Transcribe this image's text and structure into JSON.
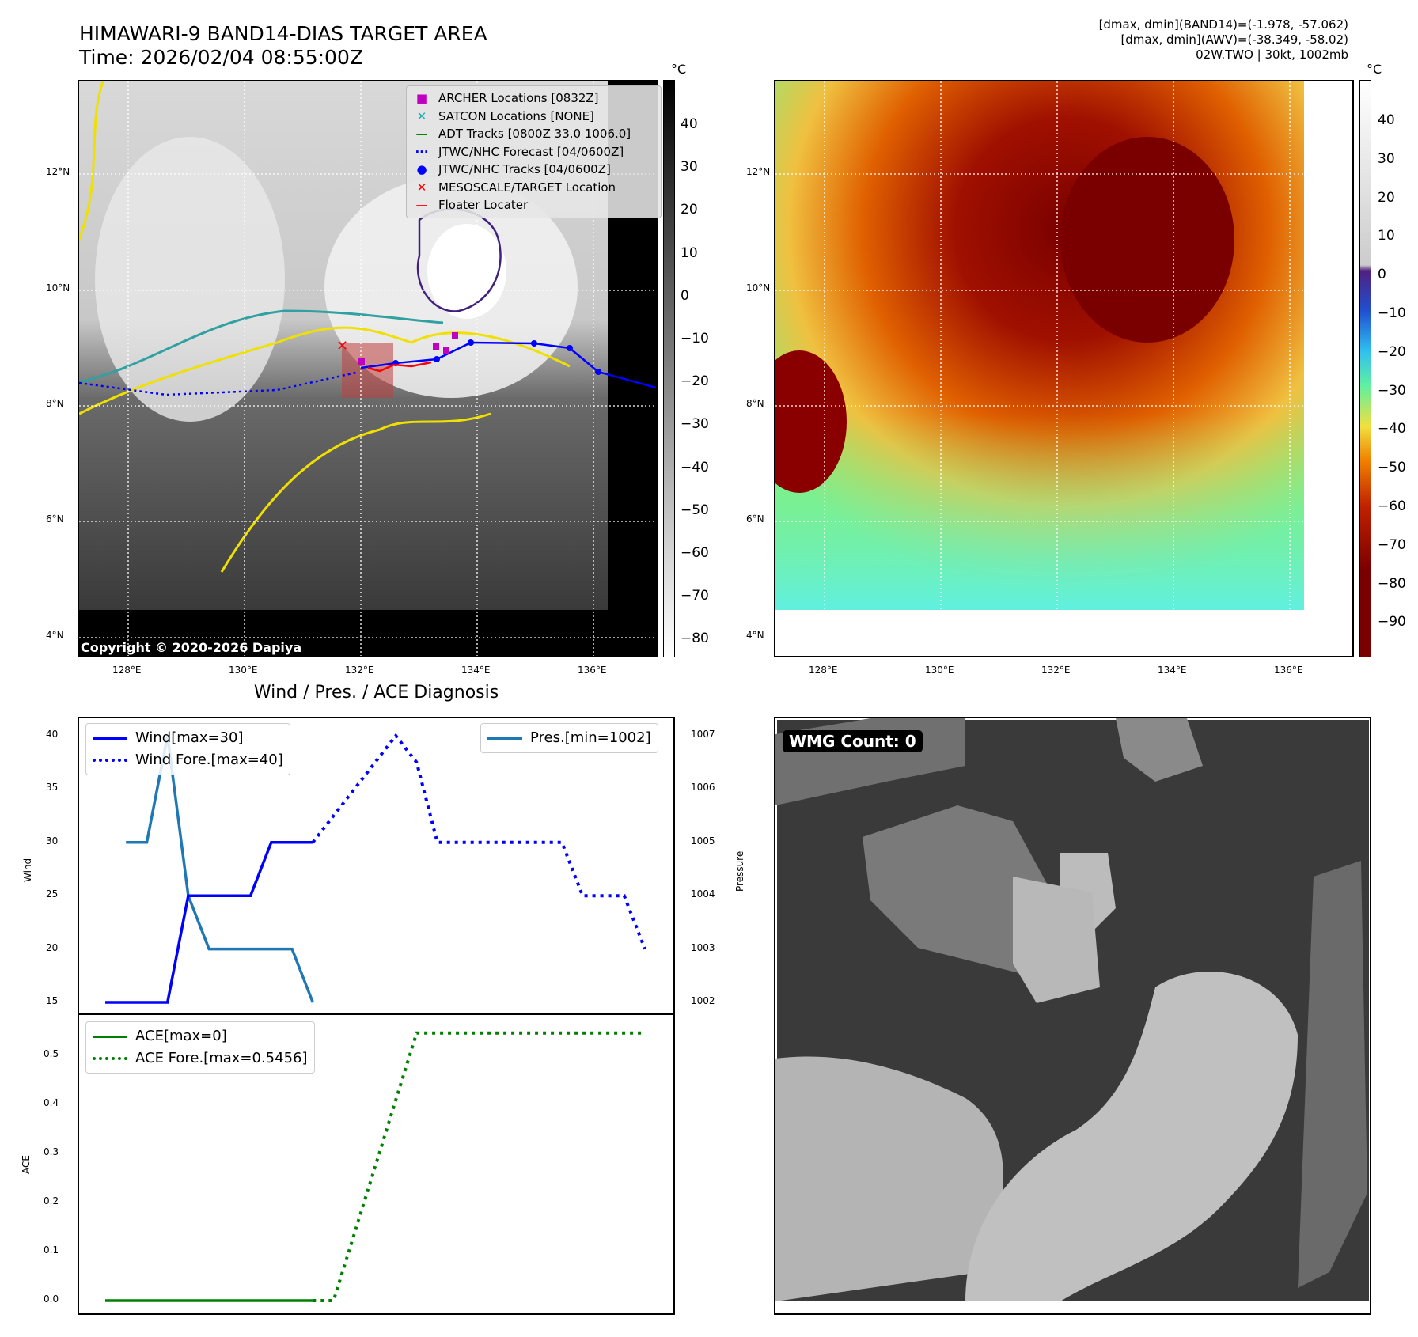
{
  "header": {
    "title_line1": "HIMAWARI-9 BAND14-DIAS TARGET AREA",
    "title_line2": "Time: 2026/02/04 08:55:00Z",
    "info_line1": "[dmax, dmin](BAND14)=(-1.978, -57.062)",
    "info_line2": "[dmax, dmin](AWV)=(-38.349, -58.02)",
    "info_line3": "02W.TWO | 30kt, 1002mb"
  },
  "map": {
    "lat_labels": [
      "12°N",
      "10°N",
      "8°N",
      "6°N",
      "4°N"
    ],
    "lon_labels": [
      "128°E",
      "130°E",
      "132°E",
      "134°E",
      "136°E"
    ],
    "copyright": "Copyright © 2020-2026 Dapiya",
    "legend": [
      {
        "marker": "■",
        "color": "#c000c0",
        "label": "ARCHER Locations [0832Z]"
      },
      {
        "marker": "✕",
        "color": "#20b0b0",
        "label": "SATCON Locations [NONE]"
      },
      {
        "marker": "—",
        "color": "#008000",
        "label": "ADT Tracks [0800Z 33.0 1006.0]"
      },
      {
        "marker": "···",
        "color": "#0000ff",
        "label": "JTWC/NHC Forecast [04/0600Z]"
      },
      {
        "marker": "●",
        "color": "#0000ff",
        "label": "JTWC/NHC Tracks [04/0600Z]"
      },
      {
        "marker": "✕",
        "color": "#ff0000",
        "label": "MESOSCALE/TARGET Location"
      },
      {
        "marker": "—",
        "color": "#ff0000",
        "label": "Floater Locater"
      }
    ]
  },
  "colorbar_left": {
    "unit": "°C",
    "ticks": [
      "40",
      "30",
      "20",
      "10",
      "0",
      "−10",
      "−20",
      "−30",
      "−40",
      "−50",
      "−60",
      "−70",
      "−80"
    ]
  },
  "colorbar_right": {
    "unit": "°C",
    "ticks": [
      "40",
      "30",
      "20",
      "10",
      "0",
      "−10",
      "−20",
      "−30",
      "−40",
      "−50",
      "−60",
      "−70",
      "−80",
      "−90"
    ]
  },
  "diagnosis": {
    "title": "Wind / Pres. / ACE Diagnosis",
    "wind_ylabel": "Wind",
    "pres_ylabel": "Pressure",
    "ace_ylabel": "ACE",
    "wind_ticks": [
      "40",
      "35",
      "30",
      "25",
      "20",
      "15"
    ],
    "pres_ticks": [
      "1007",
      "1006",
      "1005",
      "1004",
      "1003",
      "1002"
    ],
    "ace_ticks": [
      "0.5",
      "0.4",
      "0.3",
      "0.2",
      "0.1",
      "0.0"
    ],
    "legend_wind": "Wind[max=30]",
    "legend_wind_fore": "Wind Fore.[max=40]",
    "legend_pres": "Pres.[min=1002]",
    "legend_ace": "ACE[max=0]",
    "legend_ace_fore": "ACE Fore.[max=0.5456]"
  },
  "wmg": {
    "label": "WMG Count: 0"
  },
  "chart_data": [
    {
      "type": "line",
      "title": "Wind / Pres. / ACE Diagnosis",
      "ylabel": "Wind",
      "ylim": [
        14,
        40.5
      ],
      "xlim": [
        0,
        26
      ],
      "series": [
        {
          "name": "Wind[max=30]",
          "x": [
            0,
            1,
            2,
            3,
            4,
            5,
            6,
            7,
            8,
            9,
            10
          ],
          "values": [
            15,
            15,
            15,
            15,
            25,
            25,
            25,
            25,
            30,
            30,
            30
          ]
        },
        {
          "name": "Wind Fore.[max=40]",
          "x": [
            10,
            11,
            12,
            13,
            14,
            15,
            16,
            17,
            18,
            19,
            20,
            21,
            22,
            23,
            24,
            25,
            26
          ],
          "values": [
            30,
            32.5,
            35,
            37.5,
            40,
            37.5,
            30,
            30,
            30,
            30,
            30,
            30,
            30,
            25,
            25,
            25,
            20
          ]
        }
      ]
    },
    {
      "type": "line",
      "ylabel": "Pressure",
      "ylim": [
        1001.9,
        1007.1
      ],
      "xlim": [
        0,
        26
      ],
      "series": [
        {
          "name": "Pres.[min=1002]",
          "x": [
            1,
            2,
            3,
            4,
            5,
            6,
            7,
            8,
            9,
            10
          ],
          "values": [
            1005,
            1005,
            1007,
            1004,
            1003,
            1003,
            1003,
            1003,
            1003,
            1002
          ]
        }
      ]
    },
    {
      "type": "line",
      "ylabel": "ACE",
      "ylim": [
        -0.02,
        0.58
      ],
      "xlim": [
        0,
        26
      ],
      "series": [
        {
          "name": "ACE[max=0]",
          "x": [
            0,
            1,
            2,
            3,
            4,
            5,
            6,
            7,
            8,
            9,
            10
          ],
          "values": [
            0,
            0,
            0,
            0,
            0,
            0,
            0,
            0,
            0,
            0,
            0
          ]
        },
        {
          "name": "ACE Fore.[max=0.5456]",
          "x": [
            10,
            11,
            12,
            13,
            14,
            15,
            16,
            17,
            18,
            19,
            20,
            21,
            22,
            23,
            24,
            25,
            26
          ],
          "values": [
            0,
            0,
            0.1364,
            0.2728,
            0.4092,
            0.5456,
            0.5456,
            0.5456,
            0.5456,
            0.5456,
            0.5456,
            0.5456,
            0.5456,
            0.5456,
            0.5456,
            0.5456,
            0.5456
          ]
        }
      ]
    }
  ]
}
